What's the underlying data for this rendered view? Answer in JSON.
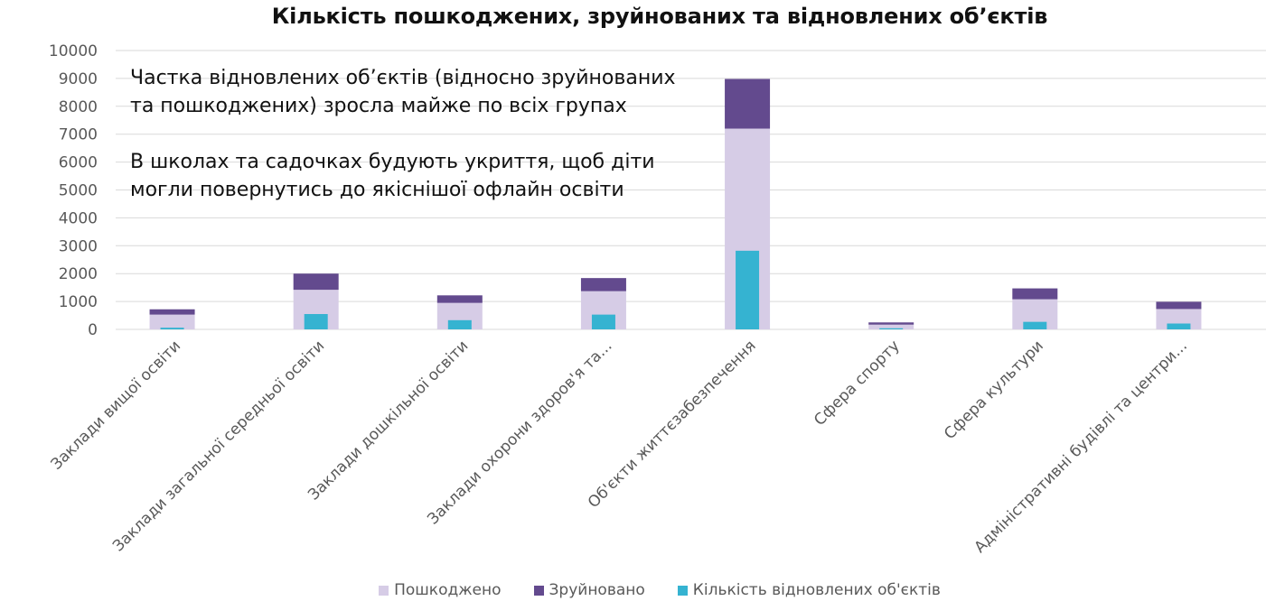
{
  "chart_data": {
    "type": "bar",
    "title": "Кількість пошкоджених, зруйнованих та відновлених об’єктів",
    "categories": [
      "Заклади вищої освіти",
      "Заклади загальної середньої освіти",
      "Заклади дошкільної освіти",
      "Заклади охорони здоров'я та...",
      "Об'єкти життєзабезпечення",
      "Сфера спорту",
      "Сфера культури",
      "Адміністративні будівлі та центри..."
    ],
    "stacked_series": [
      {
        "name": "Пошкоджено",
        "color": "#d6cce6",
        "values": [
          530,
          1420,
          950,
          1370,
          7200,
          170,
          1080,
          730
        ]
      },
      {
        "name": "Зруйновано",
        "color": "#634a8e",
        "values": [
          190,
          580,
          270,
          470,
          1780,
          80,
          390,
          260
        ]
      }
    ],
    "overlay_series": {
      "name": "Кількість відновлених об'єктів",
      "color": "#35b3d1",
      "values": [
        60,
        550,
        330,
        530,
        2820,
        40,
        270,
        210
      ]
    },
    "y_ticks": [
      0,
      1000,
      2000,
      3000,
      4000,
      5000,
      6000,
      7000,
      8000,
      9000,
      10000
    ],
    "ylim": [
      0,
      10000
    ],
    "grid": true,
    "legend_position": "bottom"
  },
  "annotations": {
    "block1": [
      "Частка відновлених об’єктів (відносно зруйнованих",
      "та пошкоджених) зросла майже по всіх групах"
    ],
    "block2": [
      "В школах та садочках будують укриття, щоб діти",
      "могли повернутись до якіснішої офлайн освіти"
    ]
  },
  "legend": [
    {
      "label": "Пошкоджено",
      "color": "#d6cce6"
    },
    {
      "label": "Зруйновано",
      "color": "#634a8e"
    },
    {
      "label": "Кількість відновлених об'єктів",
      "color": "#35b3d1"
    }
  ]
}
